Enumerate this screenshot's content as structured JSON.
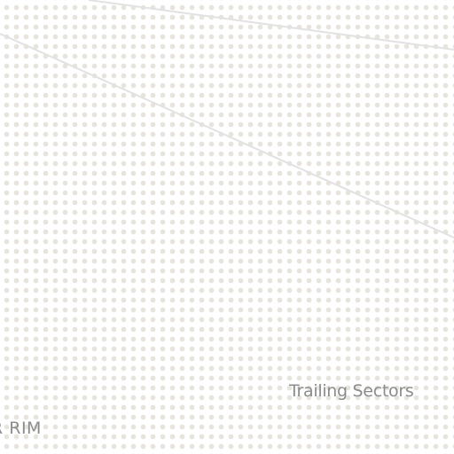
{
  "map": {
    "labels": {
      "region": "Trailing Sectors",
      "partial_edge_label": "R RIM"
    },
    "colors": {
      "background": "#ffffff",
      "dot_pattern": "#e6e4dc",
      "road": "#e2e2e2",
      "label_text": "#8c8c8c"
    }
  }
}
